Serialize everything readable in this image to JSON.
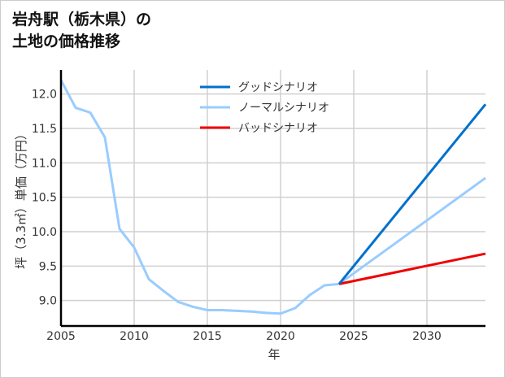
{
  "chart_data": {
    "type": "line",
    "title": [
      "岩舟駅（栃木県）の",
      "土地の価格推移"
    ],
    "xlabel": "年",
    "ylabel": "坪（3.3㎡）単価（万円）",
    "xlim": [
      2005,
      2034
    ],
    "ylim": [
      8.63,
      12.35
    ],
    "xticks": [
      2005,
      2010,
      2015,
      2020,
      2025,
      2030
    ],
    "yticks": [
      "9.0",
      "9.5",
      "10.0",
      "10.5",
      "11.0",
      "11.5",
      "12.0"
    ],
    "grid": true,
    "legend_position": "top-center",
    "series": [
      {
        "name": "グッドシナリオ",
        "color": "#0070cc",
        "x": [
          2024,
          2034
        ],
        "y": [
          9.24,
          11.85
        ]
      },
      {
        "name": "ノーマルシナリオ",
        "color": "#99ccff",
        "x": [
          2005,
          2006,
          2007,
          2008,
          2009,
          2010,
          2011,
          2012,
          2013,
          2014,
          2015,
          2016,
          2017,
          2018,
          2019,
          2020,
          2021,
          2022,
          2023,
          2024,
          2034
        ],
        "y": [
          12.2,
          11.8,
          11.73,
          11.37,
          10.04,
          9.77,
          9.31,
          9.14,
          8.98,
          8.91,
          8.86,
          8.86,
          8.85,
          8.84,
          8.82,
          8.81,
          8.89,
          9.08,
          9.22,
          9.24,
          10.78
        ]
      },
      {
        "name": "バッドシナリオ",
        "color": "#ee0000",
        "x": [
          2024,
          2034
        ],
        "y": [
          9.24,
          9.68
        ]
      }
    ]
  }
}
